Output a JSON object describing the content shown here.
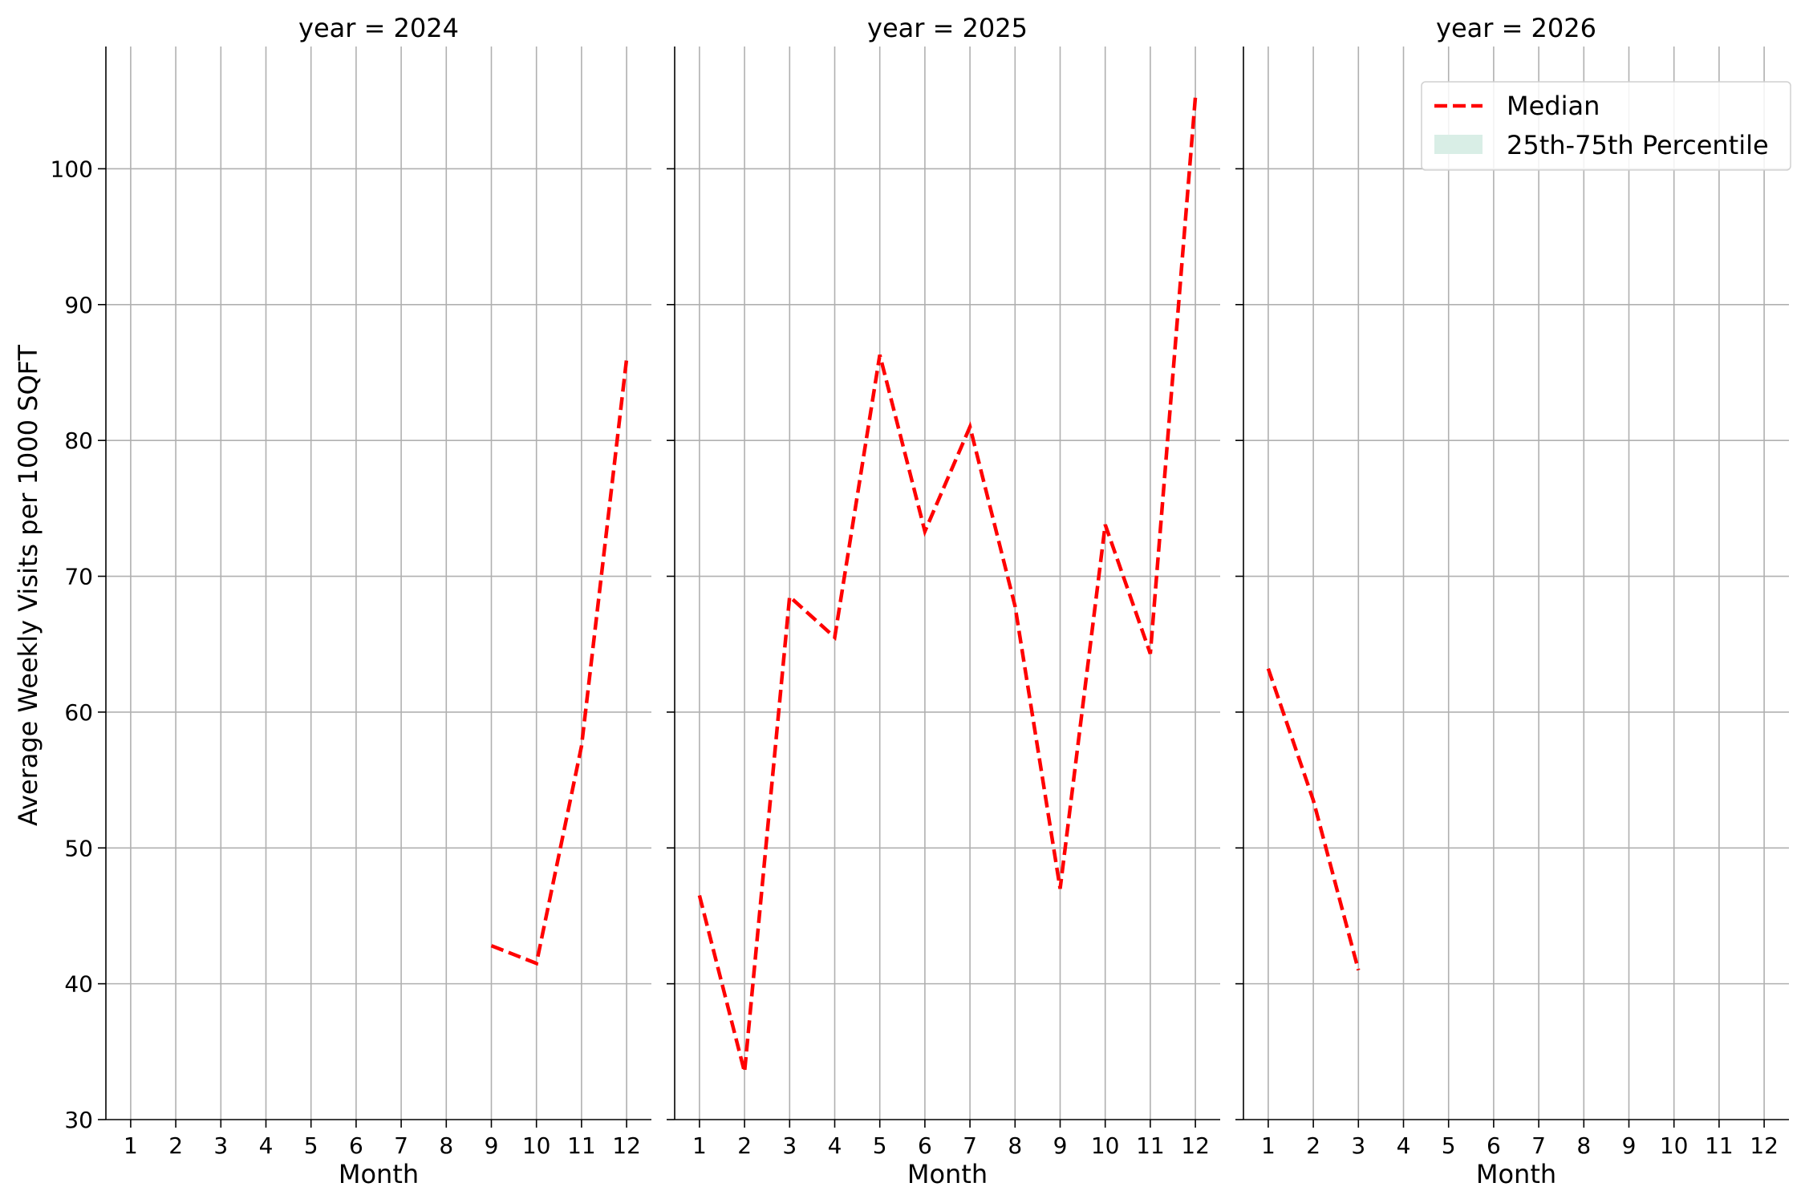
{
  "chart_data": {
    "type": "line",
    "ylabel": "Average Weekly Visits per 1000 SQFT",
    "xlabel": "Month",
    "ylim": [
      30,
      109
    ],
    "yticks": [
      30,
      40,
      50,
      60,
      70,
      80,
      90,
      100
    ],
    "xticks": [
      1,
      2,
      3,
      4,
      5,
      6,
      7,
      8,
      9,
      10,
      11,
      12
    ],
    "grid": true,
    "legend_position": "top-right",
    "legend": [
      {
        "label": "Median",
        "style": "dashed-line",
        "color": "#ff0000"
      },
      {
        "label": "25th-75th Percentile",
        "style": "band",
        "color": "#d9eee6"
      }
    ],
    "panels": [
      {
        "title": "year = 2024",
        "series": [
          {
            "name": "Median",
            "x": [
              9,
              10,
              11,
              12
            ],
            "y": [
              42.8,
              41.5,
              57.5,
              86.0
            ]
          }
        ]
      },
      {
        "title": "year = 2025",
        "series": [
          {
            "name": "Median",
            "x": [
              1,
              2,
              3,
              4,
              5,
              6,
              7,
              8,
              9,
              10,
              11,
              12
            ],
            "y": [
              46.5,
              33.5,
              68.5,
              65.5,
              86.3,
              73.3,
              81.0,
              67.8,
              47.0,
              73.8,
              64.3,
              105.3
            ]
          }
        ]
      },
      {
        "title": "year = 2026",
        "series": [
          {
            "name": "Median",
            "x": [
              1,
              2,
              3
            ],
            "y": [
              63.2,
              53.5,
              41.0
            ]
          }
        ]
      }
    ]
  }
}
